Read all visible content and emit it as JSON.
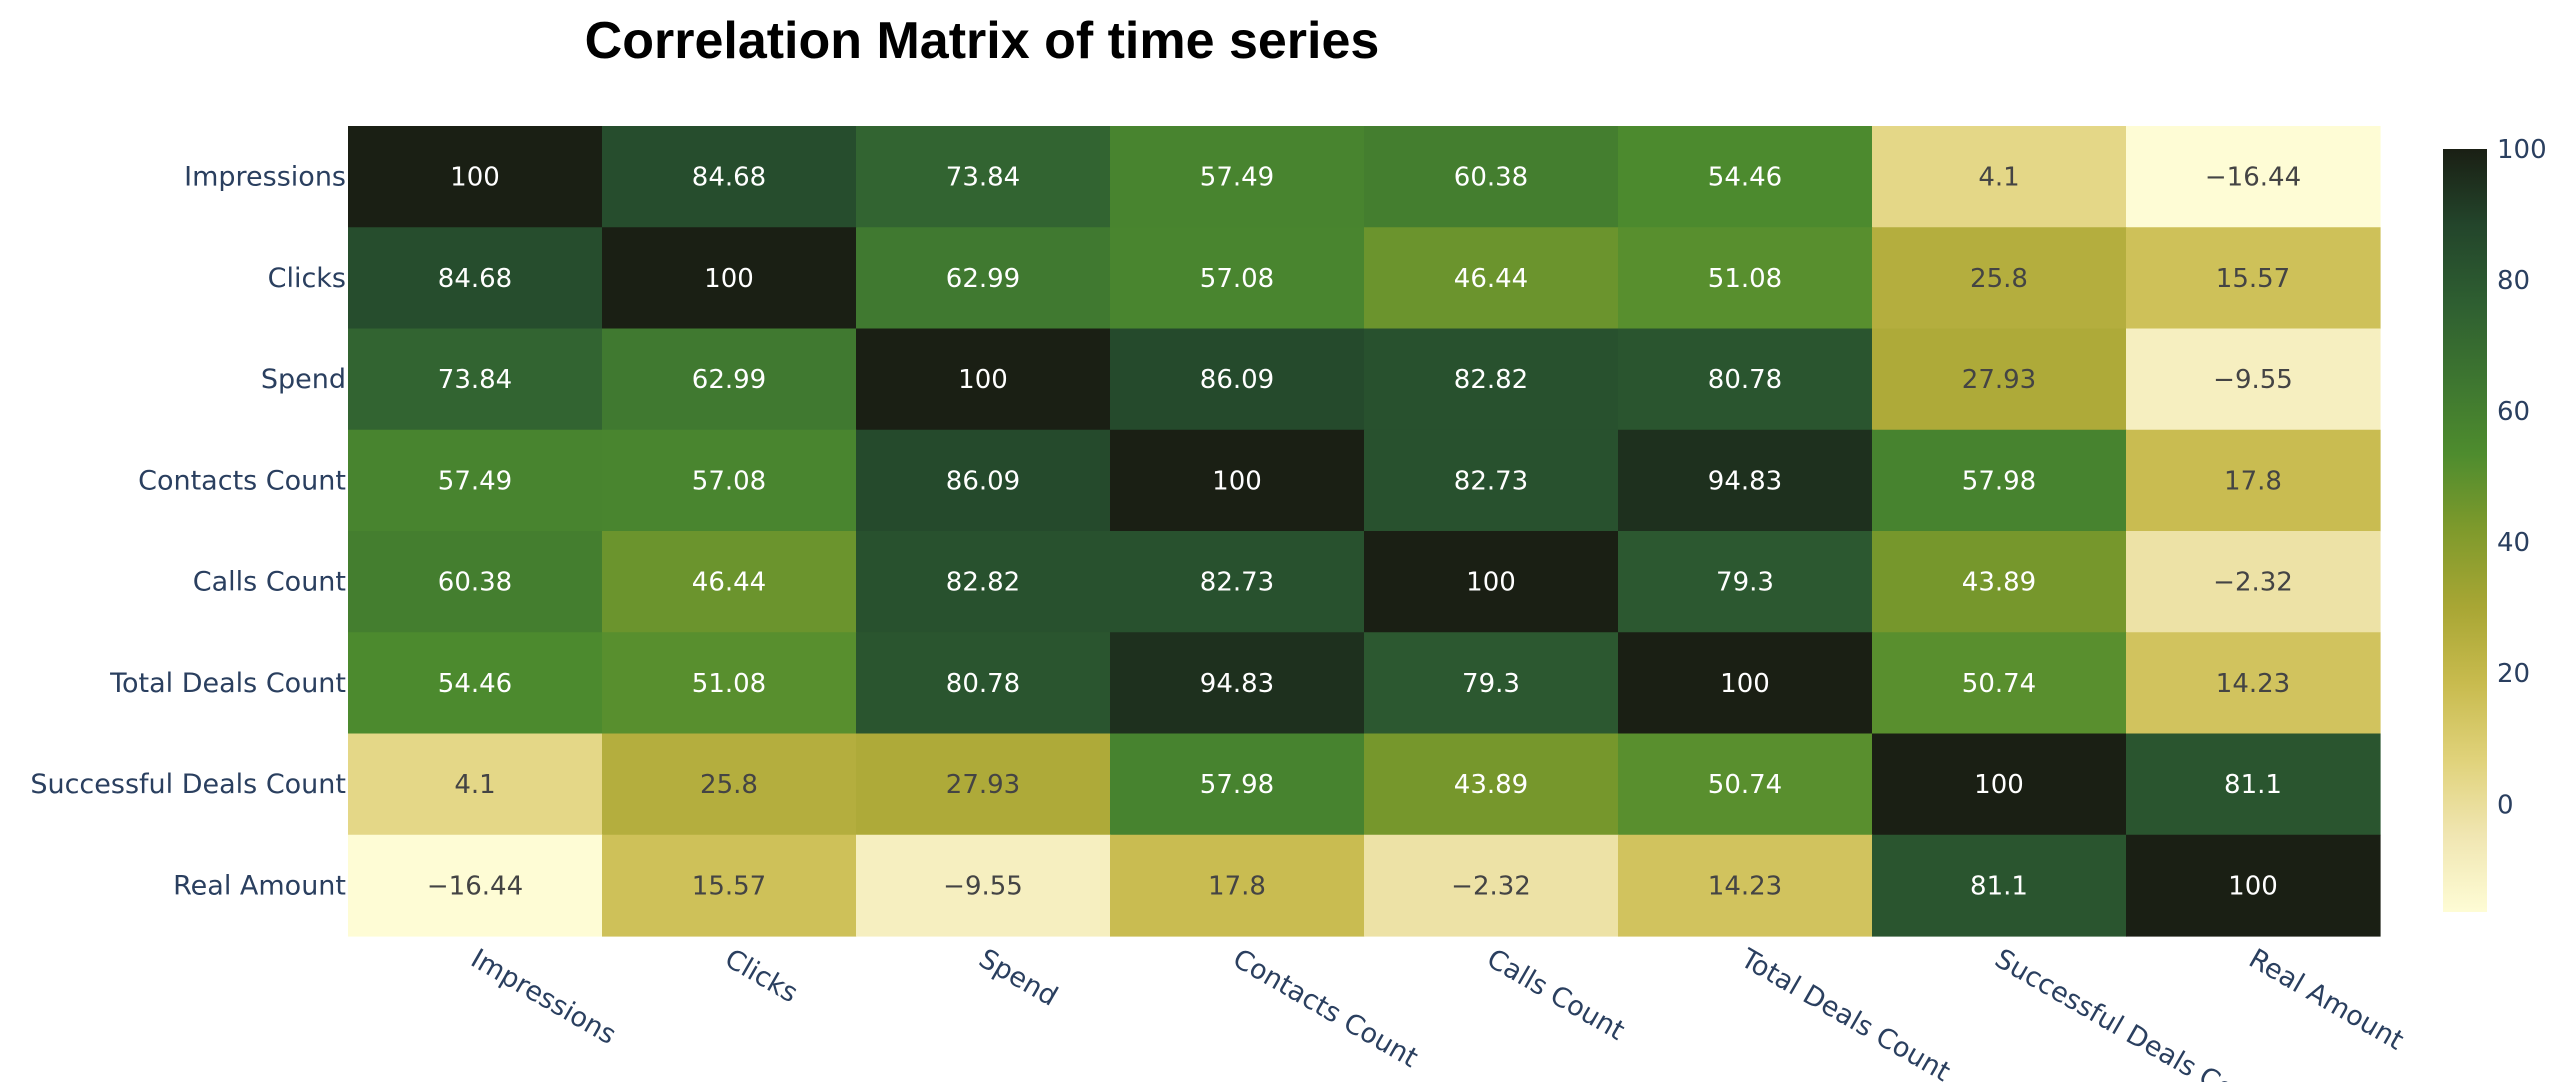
{
  "chart_data": {
    "type": "heatmap",
    "title": "Correlation Matrix of time series",
    "x_labels": [
      "Impressions",
      "Clicks",
      "Spend",
      "Contacts Count",
      "Calls Count",
      "Total Deals Count",
      "Successful Deals Count",
      "Real Amount"
    ],
    "y_labels": [
      "Impressions",
      "Clicks",
      "Spend",
      "Contacts Count",
      "Calls Count",
      "Total Deals Count",
      "Successful Deals Count",
      "Real Amount"
    ],
    "values": [
      [
        100,
        84.68,
        73.84,
        57.49,
        60.38,
        54.46,
        4.1,
        -16.44
      ],
      [
        84.68,
        100,
        62.99,
        57.08,
        46.44,
        51.08,
        25.8,
        15.57
      ],
      [
        73.84,
        62.99,
        100,
        86.09,
        82.82,
        80.78,
        27.93,
        -9.55
      ],
      [
        57.49,
        57.08,
        86.09,
        100,
        82.73,
        94.83,
        57.98,
        17.8
      ],
      [
        60.38,
        46.44,
        82.82,
        82.73,
        100,
        79.3,
        43.89,
        -2.32
      ],
      [
        54.46,
        51.08,
        80.78,
        94.83,
        79.3,
        100,
        50.74,
        14.23
      ],
      [
        4.1,
        25.8,
        27.93,
        57.98,
        43.89,
        50.74,
        100,
        81.1
      ],
      [
        -16.44,
        15.57,
        -9.55,
        17.8,
        -2.32,
        14.23,
        81.1,
        100
      ]
    ],
    "colorscale": {
      "min": -16.44,
      "max": 100,
      "colors": [
        "#fefcd5",
        "#f0e6b2",
        "#e0d27a",
        "#c8bb4e",
        "#a8a634",
        "#7f9a2c",
        "#4e8c2e",
        "#3d7530",
        "#2e5e31",
        "#23452b",
        "#1a1f14"
      ],
      "ticks": [
        0,
        20,
        40,
        60,
        80,
        100
      ]
    },
    "grid": false
  }
}
